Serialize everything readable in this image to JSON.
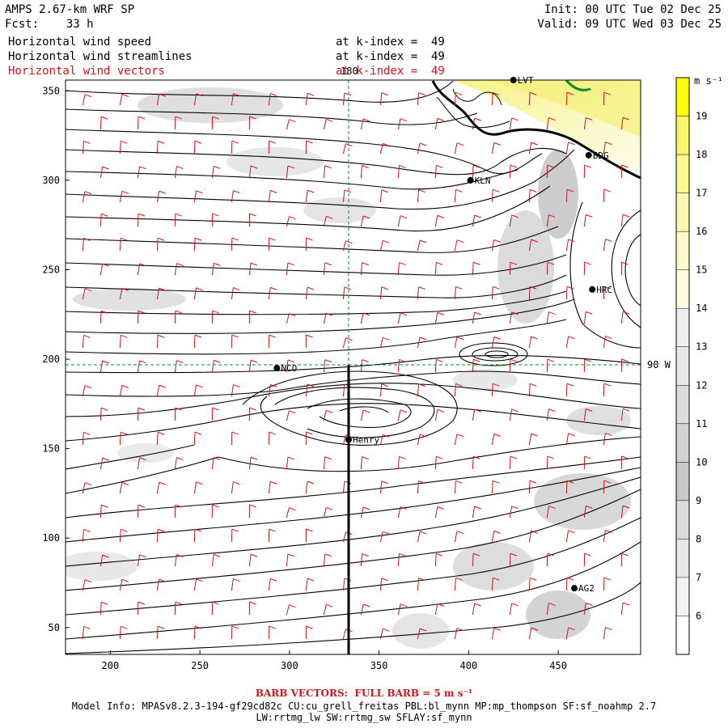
{
  "header": {
    "model": "AMPS 2.67-km WRF SP",
    "forecast": "Fcst:    33 h",
    "init": "Init: 00 UTC Tue 02 Dec 25",
    "valid": "Valid: 09 UTC Wed 03 Dec 25",
    "fields": [
      {
        "name": "Horizontal wind speed",
        "level": "at k-index =  49"
      },
      {
        "name": "Horizontal wind streamlines",
        "level": "at k-index =  49"
      },
      {
        "name": "Horizontal wind vectors",
        "level": "at k-index =  49"
      }
    ]
  },
  "map": {
    "x_ticks": [
      "200",
      "250",
      "300",
      "350",
      "400",
      "450"
    ],
    "y_ticks": [
      "50",
      "100",
      "150",
      "200",
      "250",
      "300",
      "350"
    ],
    "meridian_label": "180",
    "parallel_label": "90 W",
    "stations": [
      {
        "name": "LVT",
        "x": 425,
        "y": 356
      },
      {
        "name": "BDG",
        "x": 467,
        "y": 314
      },
      {
        "name": "KLN",
        "x": 401,
        "y": 300
      },
      {
        "name": "HRC",
        "x": 469,
        "y": 239
      },
      {
        "name": "NCO",
        "x": 293,
        "y": 195
      },
      {
        "name": "Henry",
        "x": 333,
        "y": 155
      },
      {
        "name": "AG2",
        "x": 459,
        "y": 72
      }
    ]
  },
  "colorbar": {
    "unit": "m s⁻¹",
    "levels": [
      "6",
      "7",
      "8",
      "9",
      "10",
      "11",
      "12",
      "13",
      "14",
      "15",
      "16",
      "17",
      "18",
      "19"
    ]
  },
  "footer": {
    "barb": "BARB VECTORS:  FULL BARB = 5 m s⁻¹",
    "model_info_1": "Model Info: MPASv8.2.3-194-gf29cd82c CU:cu_grell_freitas PBL:bl_mynn MP:mp_thompson SF:sf_noahmp 2.7",
    "model_info_2": "LW:rrtmg_lw SW:rrtmg_sw SFLAY:sf_mynn"
  }
}
